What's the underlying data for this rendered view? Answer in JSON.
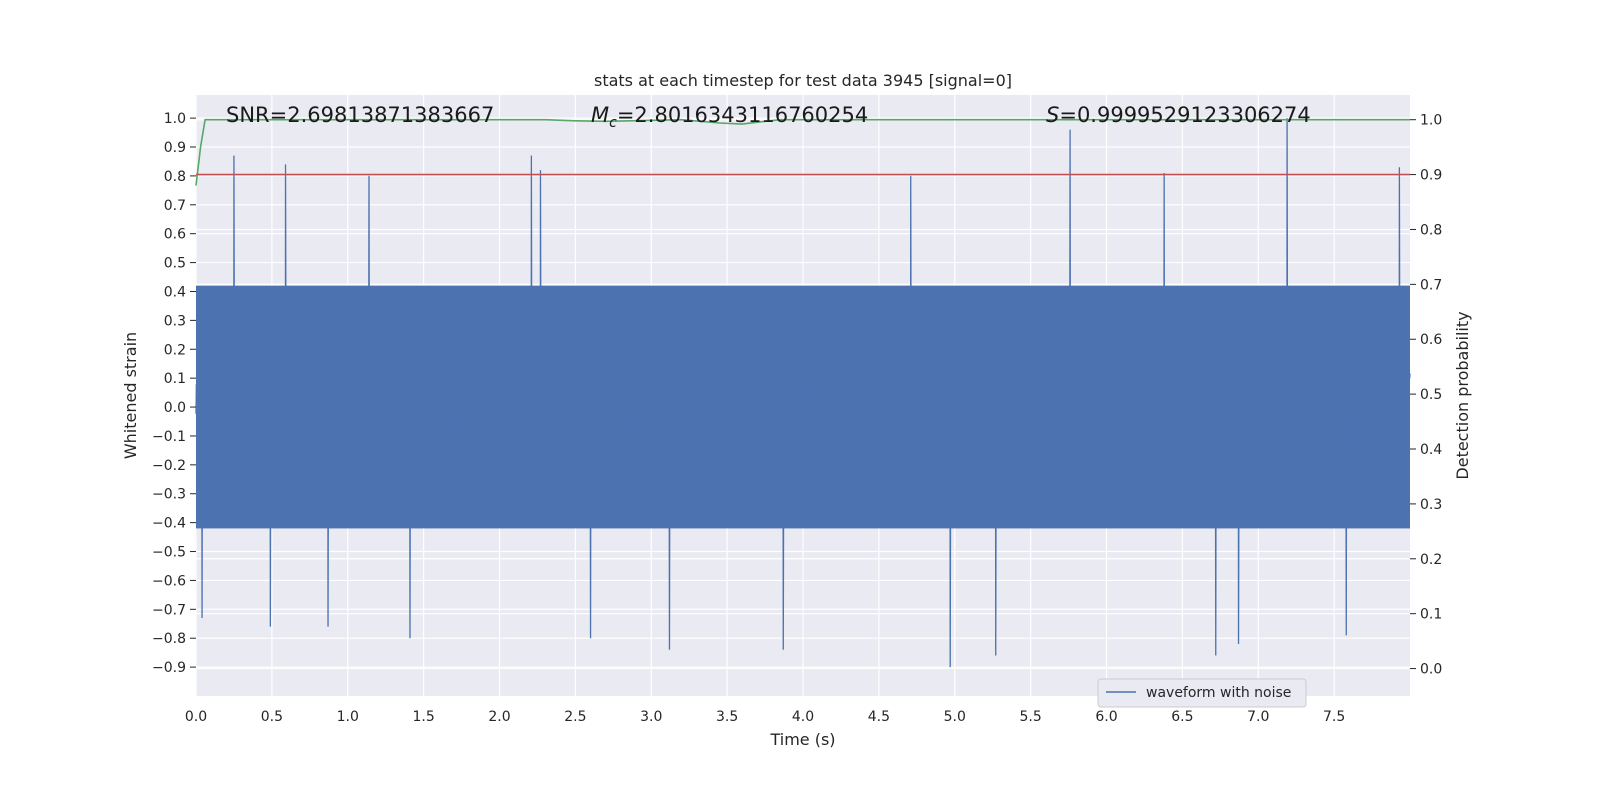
{
  "chart_data": {
    "type": "line",
    "title": "stats at each timestep for test data 3945 [signal=0]",
    "xlabel": "Time (s)",
    "ylabel_left": "Whitened strain",
    "ylabel_right": "Detection probability",
    "xlim": [
      0.0,
      8.0
    ],
    "ylim_left": [
      -1.0,
      1.08
    ],
    "ylim_right": [
      -0.05,
      1.045
    ],
    "xticks": [
      "0.0",
      "0.5",
      "1.0",
      "1.5",
      "2.0",
      "2.5",
      "3.0",
      "3.5",
      "4.0",
      "4.5",
      "5.0",
      "5.5",
      "6.0",
      "6.5",
      "7.0",
      "7.5"
    ],
    "yticks_left": [
      "−0.9",
      "−0.8",
      "−0.7",
      "−0.6",
      "−0.5",
      "−0.4",
      "−0.3",
      "−0.2",
      "−0.1",
      "0.0",
      "0.1",
      "0.2",
      "0.3",
      "0.4",
      "0.5",
      "0.6",
      "0.7",
      "0.8",
      "0.9",
      "1.0"
    ],
    "yticks_right": [
      "0.0",
      "0.1",
      "0.2",
      "0.3",
      "0.4",
      "0.5",
      "0.6",
      "0.7",
      "0.8",
      "0.9",
      "1.0"
    ],
    "annotations": {
      "snr": "SNR=2.69813871383667",
      "mc_symbol": "M",
      "mc_sub": "c",
      "mc_value": "=2.8016343116760254",
      "s_symbol": "S",
      "s_value": "=0.9999529123306274"
    },
    "series": [
      {
        "name": "waveform with noise",
        "axis": "left",
        "color": "#4c72b0",
        "kind": "noise",
        "band": [
          -0.42,
          0.42
        ],
        "peaks": [
          {
            "x": 0.25,
            "y": 0.87
          },
          {
            "x": 0.59,
            "y": 0.84
          },
          {
            "x": 1.14,
            "y": 0.8
          },
          {
            "x": 2.21,
            "y": 0.87
          },
          {
            "x": 2.27,
            "y": 0.82
          },
          {
            "x": 4.71,
            "y": 0.8
          },
          {
            "x": 5.76,
            "y": 0.96
          },
          {
            "x": 6.38,
            "y": 0.81
          },
          {
            "x": 7.19,
            "y": 1.0
          },
          {
            "x": 7.93,
            "y": 0.83
          }
        ],
        "troughs": [
          {
            "x": 0.04,
            "y": -0.73
          },
          {
            "x": 0.49,
            "y": -0.76
          },
          {
            "x": 0.87,
            "y": -0.76
          },
          {
            "x": 1.41,
            "y": -0.8
          },
          {
            "x": 2.6,
            "y": -0.8
          },
          {
            "x": 3.12,
            "y": -0.84
          },
          {
            "x": 3.87,
            "y": -0.84
          },
          {
            "x": 4.97,
            "y": -0.9
          },
          {
            "x": 5.27,
            "y": -0.86
          },
          {
            "x": 6.72,
            "y": -0.86
          },
          {
            "x": 6.87,
            "y": -0.82
          },
          {
            "x": 7.58,
            "y": -0.79
          }
        ]
      },
      {
        "name": "",
        "axis": "right",
        "color": "#55a868",
        "points": [
          [
            0.0,
            0.88
          ],
          [
            0.03,
            0.95
          ],
          [
            0.06,
            1.0
          ],
          [
            0.15,
            1.0
          ],
          [
            2.3,
            1.0
          ],
          [
            2.5,
            0.998
          ],
          [
            2.7,
            0.997
          ],
          [
            3.2,
            1.0
          ],
          [
            3.45,
            0.994
          ],
          [
            3.6,
            0.992
          ],
          [
            3.75,
            0.997
          ],
          [
            3.85,
            1.0
          ],
          [
            8.0,
            1.0
          ]
        ]
      },
      {
        "name": "",
        "axis": "right",
        "color": "#c44e52",
        "points": [
          [
            0.0,
            0.9
          ],
          [
            8.0,
            0.9
          ]
        ]
      }
    ],
    "legend": {
      "placement": "lower-center-right",
      "entries": [
        "waveform with noise"
      ]
    },
    "grid": true
  }
}
